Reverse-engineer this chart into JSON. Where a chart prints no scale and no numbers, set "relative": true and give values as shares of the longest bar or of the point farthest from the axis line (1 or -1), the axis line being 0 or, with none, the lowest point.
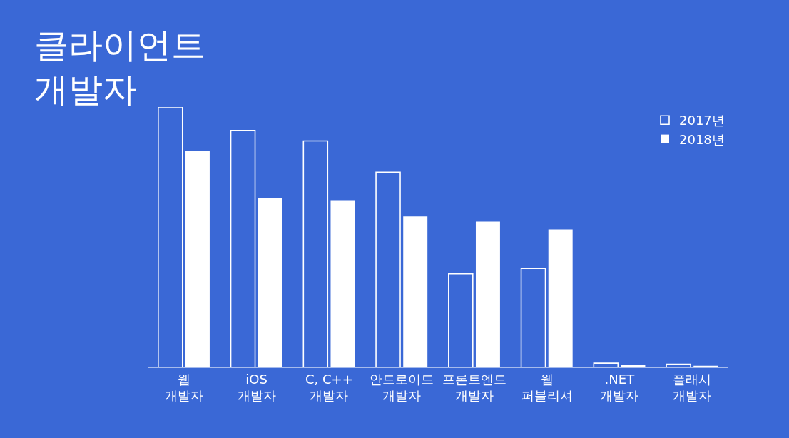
{
  "chart_data": {
    "type": "bar",
    "title": "클라이언트\n개발자",
    "categories": [
      "웹\n개발자",
      "iOS\n개발자",
      "C, C++\n개발자",
      "안드로이드\n개발자",
      "프론트엔드\n개발자",
      "웹\n퍼블리셔",
      ".NET\n개발자",
      "플래시\n개발자"
    ],
    "relative": true,
    "series": [
      {
        "name": "2017년",
        "color": "#ffffff",
        "values": [
          1,
          0.91,
          0.87,
          0.75,
          0.36,
          0.38,
          0.016,
          0.012
        ]
      },
      {
        "name": "2018년",
        "color": "#ffffff",
        "values": [
          0.83,
          0.65,
          0.64,
          0.58,
          0.56,
          0.53,
          0.008,
          0.006
        ]
      }
    ],
    "legend": "top right"
  }
}
